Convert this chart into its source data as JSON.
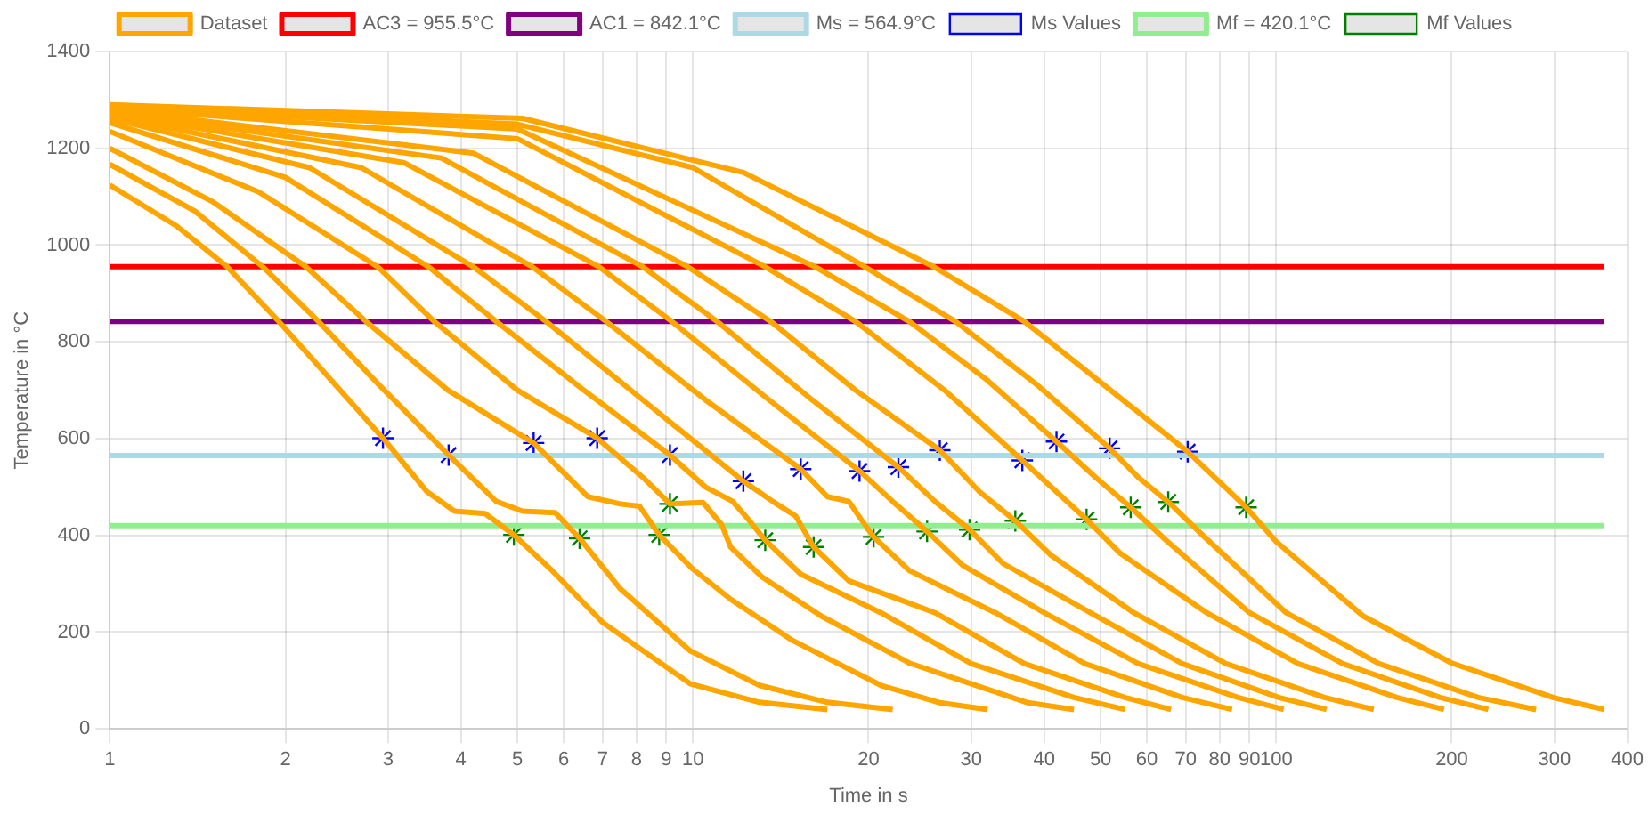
{
  "chart_data": {
    "type": "line",
    "xlabel": "Time in s",
    "ylabel": "Temperature in °C",
    "log": "x",
    "grid": true,
    "legend": "top",
    "xlim": [
      1,
      400
    ],
    "ylim": [
      0,
      1400
    ],
    "xticks": [
      1,
      2,
      3,
      4,
      5,
      6,
      7,
      8,
      9,
      10,
      20,
      30,
      40,
      50,
      60,
      70,
      80,
      90,
      100,
      200,
      300,
      400
    ],
    "yticks": [
      0,
      200,
      400,
      600,
      800,
      1000,
      1200,
      1400
    ],
    "series": [
      {
        "name": "Dataset",
        "color": "#ffa500",
        "x": [
          1,
          1.3,
          1.59,
          1.95,
          2.4,
          2.94,
          3.5,
          3.9,
          4.4,
          4.93,
          5.7,
          7,
          9.9,
          13,
          17
        ],
        "values": [
          1124,
          1040,
          955,
          842,
          720,
          601,
          490,
          450,
          445,
          401,
          330,
          220,
          93,
          55,
          40
        ]
      },
      {
        "color": "#ffa500",
        "x": [
          1,
          1.4,
          1.83,
          2.28,
          2.9,
          3.81,
          4.6,
          5.1,
          5.8,
          6.39,
          7.5,
          9.9,
          13,
          17,
          22
        ],
        "values": [
          1167,
          1070,
          955,
          842,
          710,
          566,
          470,
          450,
          447,
          394,
          290,
          161,
          90,
          55,
          40
        ]
      },
      {
        "color": "#ffa500",
        "x": [
          1,
          1.5,
          2.17,
          2.75,
          3.8,
          5.33,
          6.6,
          7.5,
          8.1,
          8.75,
          10,
          11.6,
          14.8,
          21,
          26.5,
          32
        ],
        "values": [
          1200,
          1090,
          955,
          842,
          700,
          591,
          480,
          465,
          460,
          401,
          330,
          268,
          183,
          90,
          54,
          40
        ]
      },
      {
        "color": "#ffa500",
        "x": [
          1,
          1.8,
          2.88,
          3.6,
          5,
          6.85,
          8.2,
          9.13,
          10.4,
          11.2,
          11.6,
          13.1,
          16.6,
          23.5,
          37.5,
          45
        ],
        "values": [
          1235,
          1110,
          955,
          842,
          700,
          601,
          520,
          465,
          468,
          422,
          376,
          315,
          233,
          136,
          54,
          40
        ]
      },
      {
        "color": "#ffa500",
        "x": [
          1,
          2,
          3.52,
          4.6,
          6.5,
          9.13,
          10.5,
          11.7,
          12.3,
          13.3,
          15.3,
          21,
          30,
          45,
          55
        ],
        "values": [
          1253,
          1140,
          955,
          842,
          700,
          566,
          500,
          470,
          440,
          390,
          320,
          240,
          135,
          65,
          40
        ]
      },
      {
        "color": "#ffa500",
        "x": [
          1,
          2.2,
          4.2,
          5.6,
          8.2,
          12.2,
          13.7,
          15,
          16.1,
          18.5,
          26,
          37,
          55,
          66
        ],
        "values": [
          1262,
          1160,
          955,
          842,
          680,
          512,
          470,
          440,
          376,
          306,
          240,
          135,
          65,
          40
        ]
      },
      {
        "color": "#ffa500",
        "x": [
          1,
          2.7,
          5.3,
          7.1,
          10.5,
          15.3,
          17,
          18.5,
          19.5,
          20.4,
          23.5,
          33,
          47,
          69,
          84
        ],
        "values": [
          1268,
          1160,
          955,
          842,
          680,
          537,
          480,
          470,
          430,
          397,
          327,
          240,
          135,
          65,
          40
        ]
      },
      {
        "color": "#ffa500",
        "x": [
          1,
          3.2,
          6.9,
          9.2,
          13.5,
          19.3,
          22,
          25.2,
          29,
          40,
          58,
          86,
          103
        ],
        "values": [
          1272,
          1170,
          955,
          842,
          680,
          533,
          470,
          408,
          338,
          240,
          135,
          65,
          40
        ]
      },
      {
        "color": "#ffa500",
        "x": [
          1,
          3.7,
          8.2,
          11,
          16,
          22.5,
          26,
          29.8,
          34,
          48,
          69,
          101,
          122
        ],
        "values": [
          1276,
          1180,
          955,
          842,
          680,
          541,
          470,
          412,
          342,
          240,
          135,
          65,
          40
        ]
      },
      {
        "color": "#ffa500",
        "x": [
          1,
          4.2,
          9.8,
          13.6,
          19,
          26.5,
          31,
          35.7,
          41,
          57,
          82,
          121,
          147
        ],
        "values": [
          1280,
          1190,
          955,
          842,
          700,
          576,
          490,
          430,
          360,
          240,
          135,
          65,
          40
        ]
      },
      {
        "color": "#ffa500",
        "x": [
          1,
          5,
          13.3,
          19,
          27,
          36.7,
          42,
          47.3,
          54,
          76,
          109,
          161,
          194
        ],
        "values": [
          1283,
          1220,
          955,
          842,
          700,
          555,
          490,
          433,
          363,
          240,
          135,
          65,
          40
        ]
      },
      {
        "color": "#ffa500",
        "x": [
          1,
          5,
          16.2,
          23.5,
          32,
          42,
          49,
          56.3,
          65,
          90,
          130,
          191,
          231
        ],
        "values": [
          1285,
          1240,
          955,
          842,
          720,
          594,
          520,
          458,
          388,
          240,
          135,
          65,
          40
        ]
      },
      {
        "color": "#ffa500",
        "x": [
          1,
          5,
          10,
          19.7,
          28.2,
          39,
          51.8,
          58,
          65.3,
          75,
          104,
          150,
          222,
          279
        ],
        "values": [
          1288,
          1250,
          1160,
          955,
          842,
          710,
          580,
          520,
          469,
          399,
          240,
          135,
          65,
          40
        ]
      },
      {
        "color": "#ffa500",
        "x": [
          1,
          5.1,
          12.2,
          25.9,
          37,
          52,
          70.5,
          80,
          88.8,
          100,
          141,
          200,
          300,
          365
        ],
        "values": [
          1290,
          1262,
          1150,
          955,
          842,
          700,
          573,
          510,
          458,
          387,
          233,
          136,
          64,
          40
        ]
      },
      {
        "name": "AC3 = 955.5°C",
        "color": "#ff0000",
        "x": [
          1,
          365
        ],
        "values": [
          955.5,
          955.5
        ]
      },
      {
        "name": "AC1 = 842.1°C",
        "color": "#800080",
        "x": [
          1,
          365
        ],
        "values": [
          842.1,
          842.1
        ]
      },
      {
        "name": "Ms = 564.9°C",
        "color": "#add8e6",
        "x": [
          1,
          365
        ],
        "values": [
          564.9,
          564.9
        ]
      },
      {
        "name": "Ms Values",
        "type": "scatter",
        "marker": "cross",
        "color": "#0000ff",
        "x": [
          2.94,
          3.81,
          5.33,
          6.85,
          9.13,
          12.2,
          15.3,
          19.3,
          22.5,
          26.5,
          36.7,
          42,
          51.8,
          70.5
        ],
        "values": [
          601,
          566,
          591,
          601,
          566,
          512,
          537,
          533,
          541,
          576,
          555,
          594,
          580,
          573
        ]
      },
      {
        "name": "Mf = 420.1°C",
        "color": "#90ee90",
        "x": [
          1,
          365
        ],
        "values": [
          420.1,
          420.1
        ]
      },
      {
        "name": "Mf Values",
        "type": "scatter",
        "marker": "cross",
        "color": "#008000",
        "x": [
          4.93,
          6.39,
          8.75,
          9.13,
          13.3,
          16.1,
          20.4,
          25.2,
          29.8,
          35.7,
          47.3,
          56.3,
          65.3,
          88.8
        ],
        "values": [
          401,
          394,
          401,
          465,
          390,
          376,
          397,
          408,
          412,
          430,
          433,
          458,
          469,
          458
        ]
      }
    ]
  }
}
